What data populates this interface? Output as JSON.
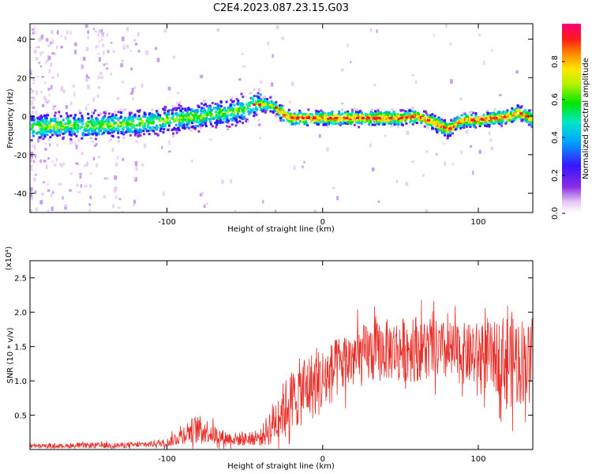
{
  "title": "C2E4.2023.087.23.15.G03",
  "chart_data": [
    {
      "type": "heatmap",
      "panel": "spectrogram",
      "xlabel": "Height of straight line (km)",
      "ylabel": "Frequency (Hz)",
      "xlim": [
        -188,
        135
      ],
      "ylim": [
        -50,
        48
      ],
      "xticks": [
        -100,
        0,
        100
      ],
      "yticks": [
        -40,
        -20,
        0,
        20,
        40
      ],
      "colorbar": {
        "label": "Normalized spectral amplitude",
        "range": [
          0,
          1
        ],
        "ticks": [
          "0.0",
          "0.2",
          "0.4",
          "0.6",
          "0.8"
        ],
        "colormap": "rainbow (white-purple-blue-cyan-green-yellow-red-magenta)"
      },
      "ridge": {
        "description": "peak frequency trace vs height",
        "x": [
          -188,
          -170,
          -150,
          -130,
          -110,
          -100,
          -90,
          -80,
          -70,
          -60,
          -50,
          -45,
          -40,
          -35,
          -30,
          -25,
          -20,
          -10,
          0,
          10,
          20,
          30,
          40,
          50,
          60,
          70,
          75,
          80,
          85,
          90,
          100,
          110,
          120,
          125,
          130,
          135
        ],
        "y": [
          -6,
          -5,
          -5,
          -4,
          -3,
          -2,
          -1,
          0,
          1,
          2,
          4,
          6,
          6,
          6,
          4,
          0,
          -1,
          -1,
          -1,
          -1,
          -1,
          -1,
          -1,
          -1,
          0,
          -3,
          -5,
          -7,
          -4,
          -2,
          -2,
          -1,
          0,
          2,
          0,
          -2
        ]
      }
    },
    {
      "type": "line",
      "panel": "snr",
      "xlabel": "Height of straight line (km)",
      "ylabel": "SNR (10 * v/v)",
      "y_multiplier": "(x10⁴)",
      "xlim": [
        -188,
        135
      ],
      "ylim": [
        0,
        2.75
      ],
      "xticks": [
        -100,
        0,
        100
      ],
      "yticks": [
        0.5,
        1.0,
        1.5,
        2.0,
        2.5
      ],
      "series": [
        {
          "color": "#e8302a",
          "envelope_x": [
            -188,
            -170,
            -150,
            -130,
            -115,
            -100,
            -95,
            -90,
            -85,
            -80,
            -75,
            -70,
            -65,
            -60,
            -55,
            -50,
            -45,
            -40,
            -35,
            -30,
            -25,
            -20,
            -15,
            -10,
            -5,
            0,
            5,
            10,
            15,
            20,
            25,
            30,
            35,
            40,
            45,
            50,
            55,
            60,
            65,
            70,
            75,
            80,
            85,
            90,
            95,
            100,
            105,
            110,
            115,
            120,
            125,
            130,
            135
          ],
          "envelope_mean": [
            0.05,
            0.05,
            0.06,
            0.06,
            0.07,
            0.1,
            0.15,
            0.22,
            0.28,
            0.3,
            0.28,
            0.22,
            0.18,
            0.16,
            0.15,
            0.15,
            0.16,
            0.17,
            0.3,
            0.45,
            0.6,
            0.72,
            0.82,
            0.9,
            0.95,
            1.0,
            1.1,
            1.2,
            1.28,
            1.32,
            1.36,
            1.4,
            1.42,
            1.45,
            1.45,
            1.46,
            1.47,
            1.48,
            1.48,
            1.45,
            1.43,
            1.42,
            1.4,
            1.4,
            1.38,
            1.37,
            1.36,
            1.35,
            1.35,
            1.32,
            1.3,
            1.3,
            1.28
          ],
          "envelope_spread": [
            0.03,
            0.03,
            0.04,
            0.04,
            0.04,
            0.06,
            0.1,
            0.14,
            0.18,
            0.2,
            0.18,
            0.15,
            0.12,
            0.1,
            0.1,
            0.1,
            0.1,
            0.12,
            0.25,
            0.35,
            0.4,
            0.45,
            0.5,
            0.5,
            0.5,
            0.5,
            0.45,
            0.45,
            0.45,
            0.45,
            0.45,
            0.45,
            0.45,
            0.45,
            0.45,
            0.45,
            0.5,
            0.5,
            0.45,
            0.45,
            0.45,
            0.45,
            0.45,
            0.45,
            0.45,
            0.5,
            0.5,
            0.5,
            0.6,
            0.7,
            0.7,
            0.6,
            0.5
          ]
        }
      ]
    }
  ]
}
